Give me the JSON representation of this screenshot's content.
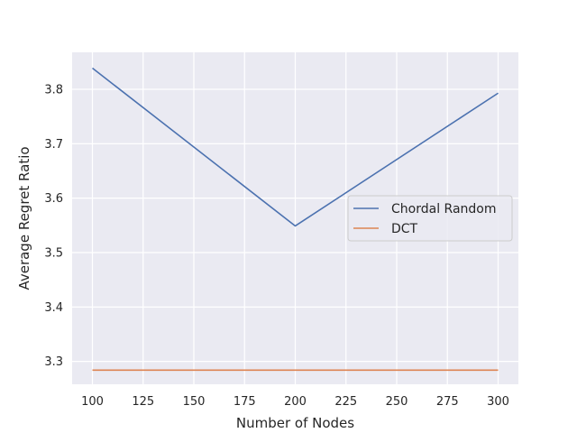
{
  "chart_data": {
    "type": "line",
    "title": "",
    "xlabel": "Number of Nodes",
    "ylabel": "Average Regret Ratio",
    "xlim": [
      90,
      310
    ],
    "ylim": [
      3.258,
      3.868
    ],
    "xticks": [
      100,
      125,
      150,
      175,
      200,
      225,
      250,
      275,
      300
    ],
    "yticks": [
      3.3,
      3.4,
      3.5,
      3.6,
      3.7,
      3.8
    ],
    "grid": true,
    "legend_position": "center-right",
    "series": [
      {
        "name": "Chordal Random",
        "color": "#4c72b0",
        "x": [
          100,
          200,
          300
        ],
        "y": [
          3.839,
          3.549,
          3.793
        ]
      },
      {
        "name": "DCT",
        "color": "#dd8452",
        "x": [
          100,
          200,
          300
        ],
        "y": [
          3.284,
          3.284,
          3.284
        ]
      }
    ]
  },
  "style": {
    "plot_background": "#eaeaf2",
    "grid_color": "#ffffff",
    "text_color": "#262626"
  }
}
